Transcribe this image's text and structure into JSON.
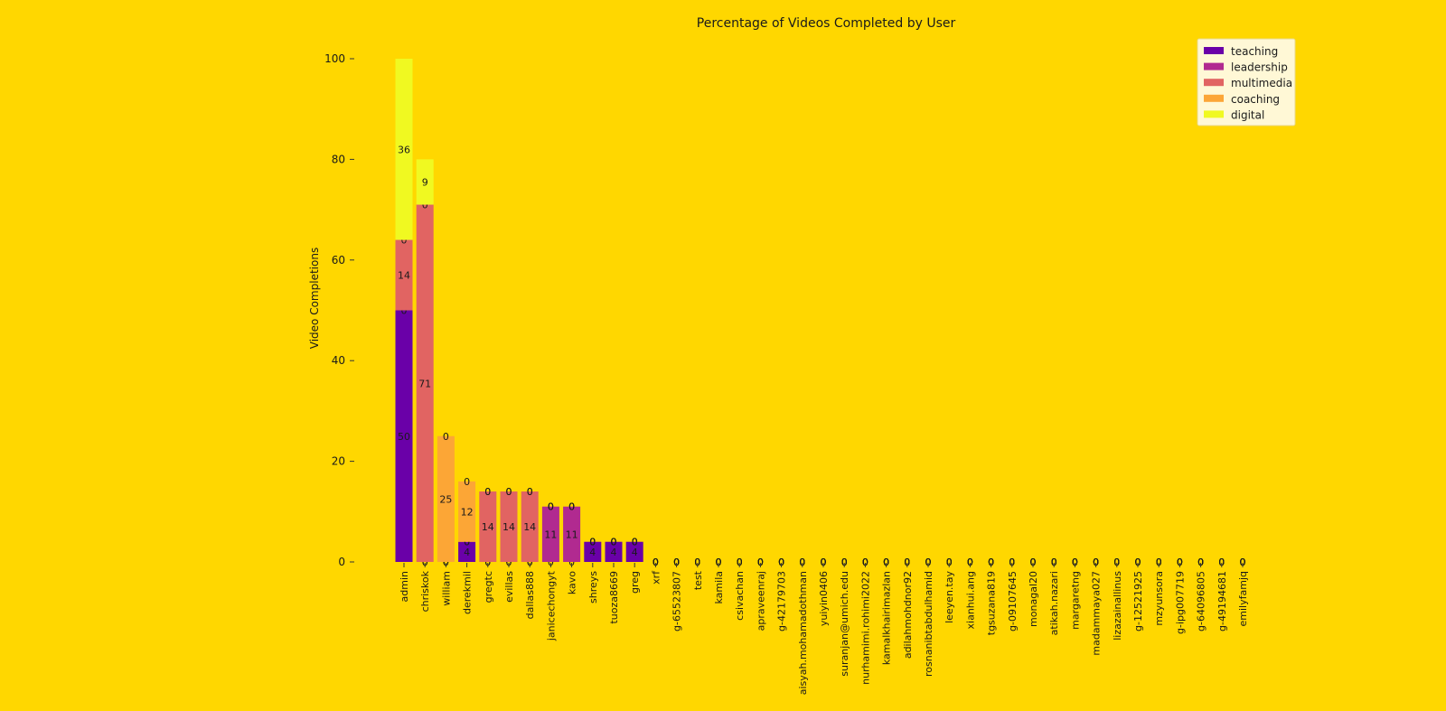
{
  "chart_data": {
    "type": "bar",
    "stacked": true,
    "title": "Percentage of Videos Completed by User",
    "xlabel": "",
    "ylabel": "Video Completions",
    "ylim": [
      0,
      100
    ],
    "yticks": [
      0,
      20,
      40,
      60,
      80,
      100
    ],
    "grid": false,
    "legend_position": "top-right",
    "categories": [
      "admin",
      "chriskok",
      "william",
      "derekmil",
      "gregtc",
      "evillas",
      "dallas888",
      "janicechongyt",
      "kavo",
      "shreys",
      "tuoza8669",
      "greg",
      "xrf",
      "g-65523807",
      "test",
      "kamila",
      "csivachan",
      "apraveenraj",
      "g-42179703",
      "aisyah.mohamadothman",
      "yuiyin0406",
      "suranjan@umich.edu",
      "nurhamimi.rohimi2022",
      "kamalkhairimazlan",
      "adilahmohdnor92",
      "rosnanibtabdulhamid",
      "leeyen.tay",
      "xianhui.ang",
      "tgsuzana819",
      "g-09107645",
      "monagal20",
      "atikah.nazari",
      "margaretng",
      "madammaya027",
      "lizazainallinus",
      "g-12521925",
      "mzyunsora",
      "g-ipg007719",
      "g-64096805",
      "g-49194681",
      "emilyfamjq"
    ],
    "series": [
      {
        "name": "teaching",
        "color": "#6a00a8",
        "values": [
          50,
          0,
          0,
          4,
          0,
          0,
          0,
          0,
          0,
          4,
          4,
          4,
          0,
          0,
          0,
          0,
          0,
          0,
          0,
          0,
          0,
          0,
          0,
          0,
          0,
          0,
          0,
          0,
          0,
          0,
          0,
          0,
          0,
          0,
          0,
          0,
          0,
          0,
          0,
          0,
          0
        ]
      },
      {
        "name": "leadership",
        "color": "#b12a90",
        "values": [
          0,
          0,
          0,
          0,
          0,
          0,
          0,
          11,
          11,
          0,
          0,
          0,
          0,
          0,
          0,
          0,
          0,
          0,
          0,
          0,
          0,
          0,
          0,
          0,
          0,
          0,
          0,
          0,
          0,
          0,
          0,
          0,
          0,
          0,
          0,
          0,
          0,
          0,
          0,
          0,
          0
        ]
      },
      {
        "name": "multimedia",
        "color": "#e16462",
        "values": [
          14,
          71,
          0,
          0,
          14,
          14,
          14,
          0,
          0,
          0,
          0,
          0,
          0,
          0,
          0,
          0,
          0,
          0,
          0,
          0,
          0,
          0,
          0,
          0,
          0,
          0,
          0,
          0,
          0,
          0,
          0,
          0,
          0,
          0,
          0,
          0,
          0,
          0,
          0,
          0,
          0
        ]
      },
      {
        "name": "coaching",
        "color": "#fca636",
        "values": [
          0,
          0,
          25,
          12,
          0,
          0,
          0,
          0,
          0,
          0,
          0,
          0,
          0,
          0,
          0,
          0,
          0,
          0,
          0,
          0,
          0,
          0,
          0,
          0,
          0,
          0,
          0,
          0,
          0,
          0,
          0,
          0,
          0,
          0,
          0,
          0,
          0,
          0,
          0,
          0,
          0
        ]
      },
      {
        "name": "digital",
        "color": "#f0f921",
        "values": [
          36,
          9,
          0,
          0,
          0,
          0,
          0,
          0,
          0,
          0,
          0,
          0,
          0,
          0,
          0,
          0,
          0,
          0,
          0,
          0,
          0,
          0,
          0,
          0,
          0,
          0,
          0,
          0,
          0,
          0,
          0,
          0,
          0,
          0,
          0,
          0,
          0,
          0,
          0,
          0,
          0
        ]
      }
    ]
  }
}
